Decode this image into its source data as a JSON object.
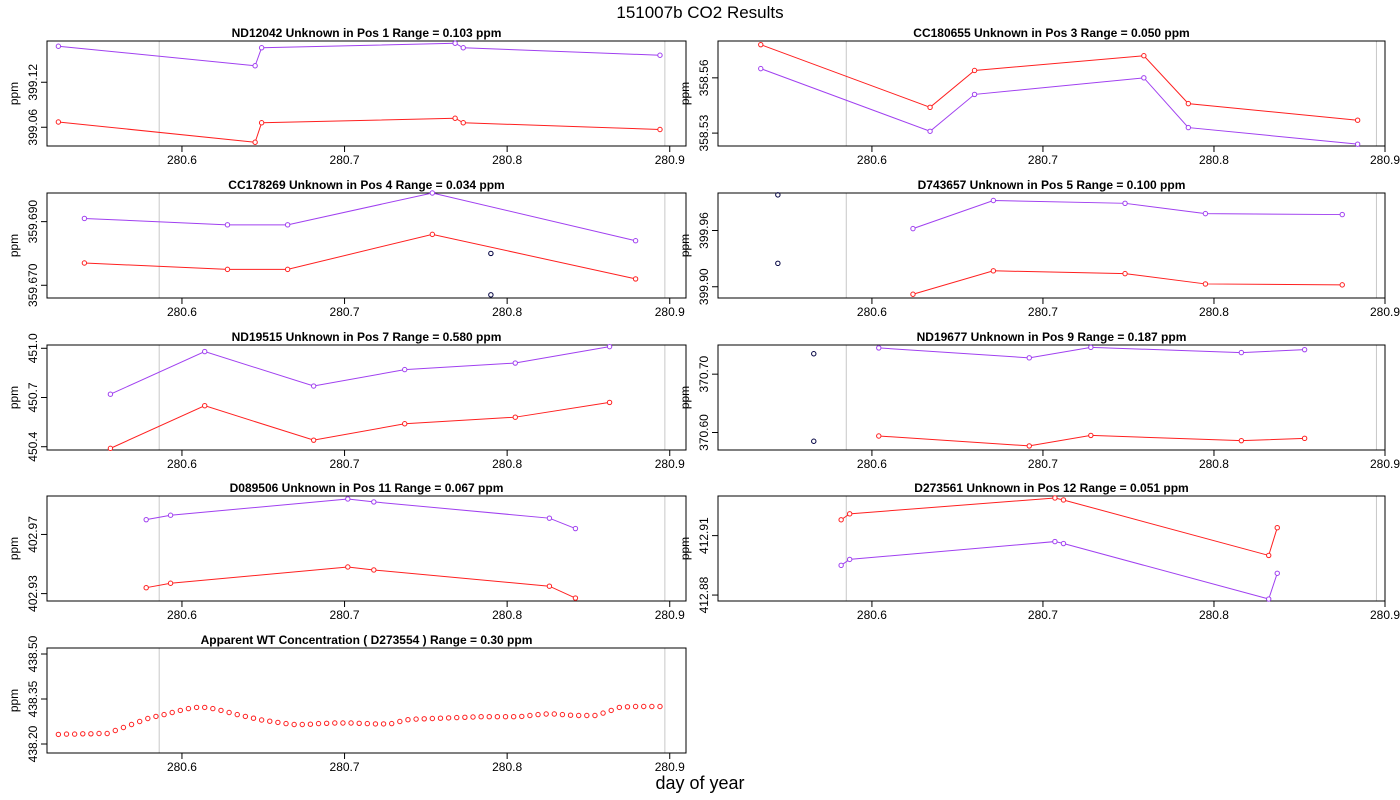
{
  "title": "151007b  CO2 Results",
  "xlabel": "day of year",
  "colors": {
    "series_a": "#a040f0",
    "series_b": "#ff2020",
    "ref_line": "#c8c8c8",
    "outlier": "#000040"
  },
  "chart_data": [
    {
      "type": "line",
      "name": "ND12042",
      "title": "ND12042    Unknown in Pos 1         Range =  0.103 ppm",
      "ylabel": "ppm",
      "xlim": [
        280.517,
        280.91
      ],
      "ylim": [
        399.035,
        399.175
      ],
      "xticks": [
        "280.6",
        "280.7",
        "280.8",
        "280.9"
      ],
      "xtick_values": [
        280.6,
        280.7,
        280.8,
        280.9
      ],
      "yticks": [
        "399.06",
        "399.12"
      ],
      "ytick_values": [
        399.06,
        399.12
      ],
      "vlines": [
        280.586,
        280.897
      ],
      "series": [
        {
          "name": "upper",
          "color": "#a040f0",
          "x": [
            280.524,
            280.645,
            280.649,
            280.768,
            280.773,
            280.894
          ],
          "y": [
            399.168,
            399.142,
            399.166,
            399.172,
            399.166,
            399.156
          ]
        },
        {
          "name": "lower",
          "color": "#ff2020",
          "x": [
            280.524,
            280.645,
            280.649,
            280.768,
            280.773,
            280.894
          ],
          "y": [
            399.067,
            399.04,
            399.066,
            399.072,
            399.066,
            399.057
          ]
        }
      ],
      "outliers": []
    },
    {
      "type": "line",
      "name": "CC180655",
      "title": "CC180655    Unknown in Pos 3         Range =  0.050 ppm",
      "ylabel": "ppm",
      "xlim": [
        280.51,
        280.9
      ],
      "ylim": [
        358.523,
        358.58
      ],
      "xticks": [
        "280.6",
        "280.7",
        "280.8",
        "280.9"
      ],
      "xtick_values": [
        280.6,
        280.7,
        280.8,
        280.9
      ],
      "yticks": [
        "358.53",
        "358.56"
      ],
      "ytick_values": [
        358.53,
        358.56
      ],
      "vlines": [
        280.585,
        280.895
      ],
      "series": [
        {
          "name": "upper",
          "color": "#ff2020",
          "x": [
            280.535,
            280.634,
            280.66,
            280.759,
            280.785,
            280.884
          ],
          "y": [
            358.578,
            358.544,
            358.564,
            358.572,
            358.546,
            358.537
          ]
        },
        {
          "name": "lower",
          "color": "#a040f0",
          "x": [
            280.535,
            280.634,
            280.66,
            280.759,
            280.785,
            280.884
          ],
          "y": [
            358.565,
            358.531,
            358.551,
            358.56,
            358.533,
            358.524
          ]
        }
      ],
      "outliers": []
    },
    {
      "type": "line",
      "name": "CC178269",
      "title": "CC178269    Unknown in Pos 4         Range =  0.034 ppm",
      "ylabel": "ppm",
      "xlim": [
        280.517,
        280.91
      ],
      "ylim": [
        359.666,
        359.699
      ],
      "xticks": [
        "280.6",
        "280.7",
        "280.8",
        "280.9"
      ],
      "xtick_values": [
        280.6,
        280.7,
        280.8,
        280.9
      ],
      "yticks": [
        "359.670",
        "359.690"
      ],
      "ytick_values": [
        359.67,
        359.69
      ],
      "vlines": [
        280.586,
        280.897
      ],
      "series": [
        {
          "name": "upper",
          "color": "#a040f0",
          "x": [
            280.54,
            280.628,
            280.665,
            280.754,
            280.879
          ],
          "y": [
            359.691,
            359.689,
            359.689,
            359.699,
            359.684
          ]
        },
        {
          "name": "lower",
          "color": "#ff2020",
          "x": [
            280.54,
            280.628,
            280.665,
            280.754,
            280.879
          ],
          "y": [
            359.677,
            359.675,
            359.675,
            359.686,
            359.672
          ]
        }
      ],
      "outliers": [
        {
          "x": 280.79,
          "y": 359.68
        },
        {
          "x": 280.79,
          "y": 359.667
        }
      ]
    },
    {
      "type": "line",
      "name": "D743657",
      "title": "D743657    Unknown in Pos 5         Range =  0.100 ppm",
      "ylabel": "ppm",
      "xlim": [
        280.51,
        280.9
      ],
      "ylim": [
        399.888,
        400.0
      ],
      "xticks": [
        "280.6",
        "280.7",
        "280.8",
        "280.9"
      ],
      "xtick_values": [
        280.6,
        280.7,
        280.8,
        280.9
      ],
      "yticks": [
        "399.90",
        "399.96"
      ],
      "ytick_values": [
        399.9,
        399.96
      ],
      "vlines": [
        280.585,
        280.895
      ],
      "series": [
        {
          "name": "upper",
          "color": "#a040f0",
          "x": [
            280.624,
            280.671,
            280.748,
            280.795,
            280.875
          ],
          "y": [
            399.962,
            399.992,
            399.989,
            399.978,
            399.977
          ]
        },
        {
          "name": "lower",
          "color": "#ff2020",
          "x": [
            280.624,
            280.671,
            280.748,
            280.795,
            280.875
          ],
          "y": [
            399.892,
            399.917,
            399.914,
            399.903,
            399.902
          ]
        }
      ],
      "outliers": [
        {
          "x": 280.545,
          "y": 399.998
        },
        {
          "x": 280.545,
          "y": 399.925
        }
      ]
    },
    {
      "type": "line",
      "name": "ND19515",
      "title": "ND19515    Unknown in Pos 7         Range =  0.580 ppm",
      "ylabel": "ppm",
      "xlim": [
        280.517,
        280.91
      ],
      "ylim": [
        450.38,
        451.02
      ],
      "xticks": [
        "280.6",
        "280.7",
        "280.8",
        "280.9"
      ],
      "xtick_values": [
        280.6,
        280.7,
        280.8,
        280.9
      ],
      "yticks": [
        "450.4",
        "450.7",
        "451.0"
      ],
      "ytick_values": [
        450.4,
        450.7,
        451.0
      ],
      "vlines": [
        280.586,
        280.897
      ],
      "series": [
        {
          "name": "upper",
          "color": "#a040f0",
          "x": [
            280.556,
            280.614,
            280.681,
            280.737,
            280.805,
            280.863
          ],
          "y": [
            450.72,
            450.98,
            450.77,
            450.87,
            450.91,
            451.01
          ]
        },
        {
          "name": "lower",
          "color": "#ff2020",
          "x": [
            280.556,
            280.614,
            280.681,
            280.737,
            280.805,
            280.863
          ],
          "y": [
            450.39,
            450.65,
            450.44,
            450.54,
            450.58,
            450.67
          ]
        }
      ],
      "outliers": []
    },
    {
      "type": "line",
      "name": "ND19677",
      "title": "ND19677    Unknown in Pos 9         Range =  0.187 ppm",
      "ylabel": "ppm",
      "xlim": [
        280.51,
        280.9
      ],
      "ylim": [
        370.57,
        370.75
      ],
      "xticks": [
        "280.6",
        "280.7",
        "280.8",
        "280.9"
      ],
      "xtick_values": [
        280.6,
        280.7,
        280.8,
        280.9
      ],
      "yticks": [
        "370.60",
        "370.70"
      ],
      "ytick_values": [
        370.6,
        370.7
      ],
      "vlines": [
        280.585,
        280.895
      ],
      "series": [
        {
          "name": "upper",
          "color": "#a040f0",
          "x": [
            280.604,
            280.692,
            280.728,
            280.816,
            280.853
          ],
          "y": [
            370.745,
            370.728,
            370.746,
            370.737,
            370.742
          ]
        },
        {
          "name": "lower",
          "color": "#ff2020",
          "x": [
            280.604,
            280.692,
            280.728,
            280.816,
            280.853
          ],
          "y": [
            370.594,
            370.577,
            370.595,
            370.586,
            370.59
          ]
        }
      ],
      "outliers": [
        {
          "x": 280.566,
          "y": 370.735
        },
        {
          "x": 280.566,
          "y": 370.585
        }
      ]
    },
    {
      "type": "line",
      "name": "D089506",
      "title": "D089506    Unknown in Pos 11         Range =  0.067 ppm",
      "ylabel": "ppm",
      "xlim": [
        280.517,
        280.91
      ],
      "ylim": [
        402.925,
        402.996
      ],
      "xticks": [
        "280.6",
        "280.7",
        "280.8",
        "280.9"
      ],
      "xtick_values": [
        280.6,
        280.7,
        280.8,
        280.9
      ],
      "yticks": [
        "402.93",
        "402.97"
      ],
      "ytick_values": [
        402.93,
        402.97
      ],
      "vlines": [
        280.586,
        280.897
      ],
      "series": [
        {
          "name": "upper",
          "color": "#a040f0",
          "x": [
            280.578,
            280.593,
            280.702,
            280.718,
            280.826,
            280.842
          ],
          "y": [
            402.98,
            402.983,
            402.994,
            402.992,
            402.981,
            402.974
          ]
        },
        {
          "name": "lower",
          "color": "#ff2020",
          "x": [
            280.578,
            280.593,
            280.702,
            280.718,
            280.826,
            280.842
          ],
          "y": [
            402.934,
            402.937,
            402.948,
            402.946,
            402.935,
            402.927
          ]
        }
      ],
      "outliers": []
    },
    {
      "type": "line",
      "name": "D273561",
      "title": "D273561    Unknown in Pos 12         Range =  0.051 ppm",
      "ylabel": "ppm",
      "xlim": [
        280.51,
        280.9
      ],
      "ylim": [
        412.877,
        412.93
      ],
      "xticks": [
        "280.6",
        "280.7",
        "280.8",
        "280.9"
      ],
      "xtick_values": [
        280.6,
        280.7,
        280.8,
        280.9
      ],
      "yticks": [
        "412.88",
        "412.91"
      ],
      "ytick_values": [
        412.88,
        412.91
      ],
      "vlines": [
        280.585,
        280.895
      ],
      "series": [
        {
          "name": "upper",
          "color": "#ff2020",
          "x": [
            280.582,
            280.587,
            280.707,
            280.712,
            280.832,
            280.837
          ],
          "y": [
            412.918,
            412.921,
            412.929,
            412.928,
            412.9,
            412.914
          ]
        },
        {
          "name": "lower",
          "color": "#a040f0",
          "x": [
            280.582,
            280.587,
            280.707,
            280.712,
            280.832,
            280.837
          ],
          "y": [
            412.895,
            412.898,
            412.907,
            412.906,
            412.878,
            412.891
          ]
        }
      ],
      "outliers": []
    },
    {
      "type": "scatter",
      "name": "WT",
      "title": "Apparent WT Concentration ( D273554 )         Range = 0.30 ppm",
      "ylabel": "ppm",
      "xlim": [
        280.517,
        280.91
      ],
      "ylim": [
        438.17,
        438.52
      ],
      "xticks": [
        "280.6",
        "280.7",
        "280.8",
        "280.9"
      ],
      "xtick_values": [
        280.6,
        280.7,
        280.8,
        280.9
      ],
      "yticks": [
        "438.20",
        "438.35",
        "438.50"
      ],
      "ytick_values": [
        438.2,
        438.35,
        438.5
      ],
      "vlines": [
        280.586,
        280.897
      ],
      "x": [
        280.524,
        280.529,
        280.534,
        280.539,
        280.544,
        280.549,
        280.554,
        280.559,
        280.564,
        280.569,
        280.574,
        280.579,
        280.584,
        280.589,
        280.594,
        280.599,
        280.604,
        280.609,
        280.614,
        280.619,
        280.624,
        280.629,
        280.634,
        280.639,
        280.644,
        280.649,
        280.654,
        280.659,
        280.664,
        280.669,
        280.674,
        280.679,
        280.684,
        280.689,
        280.694,
        280.699,
        280.704,
        280.709,
        280.714,
        280.719,
        280.724,
        280.729,
        280.734,
        280.739,
        280.744,
        280.749,
        280.754,
        280.759,
        280.764,
        280.769,
        280.774,
        280.779,
        280.784,
        280.789,
        280.794,
        280.799,
        280.804,
        280.809,
        280.814,
        280.819,
        280.824,
        280.829,
        280.834,
        280.839,
        280.844,
        280.849,
        280.854,
        280.859,
        280.864,
        280.869,
        280.874,
        280.879,
        280.884,
        280.889,
        280.894
      ],
      "y": [
        438.232,
        438.233,
        438.233,
        438.234,
        438.234,
        438.235,
        438.235,
        438.245,
        438.255,
        438.265,
        438.275,
        438.285,
        438.292,
        438.298,
        438.305,
        438.312,
        438.318,
        438.322,
        438.322,
        438.318,
        438.312,
        438.305,
        438.298,
        438.292,
        438.286,
        438.28,
        438.276,
        438.272,
        438.268,
        438.265,
        438.265,
        438.266,
        438.268,
        438.269,
        438.27,
        438.27,
        438.27,
        438.269,
        438.268,
        438.267,
        438.267,
        438.268,
        438.275,
        438.281,
        438.283,
        438.284,
        438.285,
        438.286,
        438.287,
        438.288,
        438.289,
        438.29,
        438.291,
        438.291,
        438.291,
        438.291,
        438.291,
        438.292,
        438.295,
        438.298,
        438.3,
        438.3,
        438.298,
        438.296,
        438.295,
        438.295,
        438.295,
        438.303,
        438.312,
        438.322,
        438.324,
        438.325,
        438.325,
        438.325,
        438.325
      ]
    }
  ]
}
